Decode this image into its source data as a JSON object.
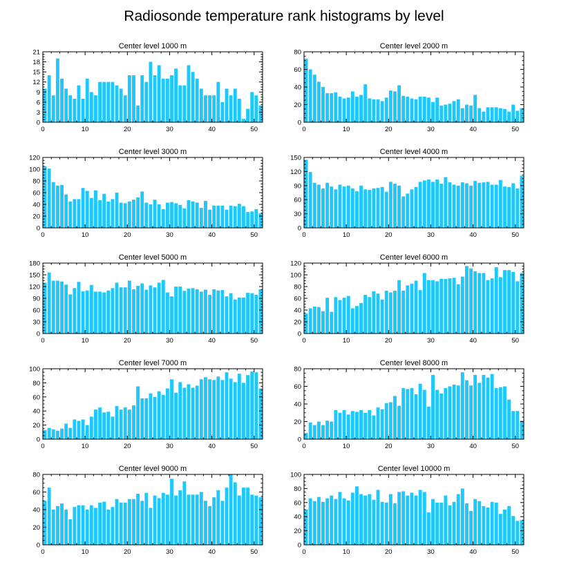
{
  "chart_data": {
    "title": "Radiosonde temperature rank histograms by level",
    "colors": {
      "bar": "#1EC8FA",
      "axis": "#000000",
      "background": "#FFFFFF"
    },
    "panels": [
      {
        "type": "bar",
        "title": "Center level 1000 m",
        "x": [
          0,
          1,
          2,
          3,
          4,
          5,
          6,
          7,
          8,
          9,
          10,
          11,
          12,
          13,
          14,
          15,
          16,
          17,
          18,
          19,
          20,
          21,
          22,
          23,
          24,
          25,
          26,
          27,
          28,
          29,
          30,
          31,
          32,
          33,
          34,
          35,
          36,
          37,
          38,
          39,
          40,
          41,
          42,
          43,
          44,
          45,
          46,
          47,
          48,
          49,
          50,
          51
        ],
        "values": [
          10,
          14,
          8,
          19,
          13,
          10,
          8,
          7,
          11,
          7,
          13,
          9,
          8,
          12,
          12,
          12,
          12,
          11,
          10,
          8,
          14,
          14,
          5,
          14,
          12,
          18,
          14,
          17,
          13,
          13,
          14,
          16,
          11,
          11,
          17,
          15,
          13,
          10,
          8,
          8,
          8,
          12,
          6,
          10,
          8,
          10,
          7,
          1,
          4,
          9,
          8,
          5
        ],
        "xlim": [
          0,
          52
        ],
        "ylim": [
          0,
          21
        ],
        "xticks": [
          0,
          10,
          20,
          30,
          40,
          50
        ],
        "yticks": [
          0,
          3,
          6,
          9,
          12,
          15,
          18,
          21
        ]
      },
      {
        "type": "bar",
        "title": "Center level 2000 m",
        "x": [
          0,
          1,
          2,
          3,
          4,
          5,
          6,
          7,
          8,
          9,
          10,
          11,
          12,
          13,
          14,
          15,
          16,
          17,
          18,
          19,
          20,
          21,
          22,
          23,
          24,
          25,
          26,
          27,
          28,
          29,
          30,
          31,
          32,
          33,
          34,
          35,
          36,
          37,
          38,
          39,
          40,
          41,
          42,
          43,
          44,
          45,
          46,
          47,
          48,
          49,
          50,
          51
        ],
        "values": [
          72,
          60,
          54,
          46,
          40,
          33,
          33,
          34,
          29,
          27,
          28,
          35,
          29,
          31,
          43,
          27,
          26,
          26,
          24,
          28,
          36,
          35,
          42,
          30,
          29,
          27,
          26,
          29,
          29,
          28,
          23,
          28,
          19,
          20,
          21,
          24,
          26,
          16,
          20,
          19,
          31,
          16,
          12,
          17,
          17,
          17,
          16,
          15,
          12,
          20,
          13,
          16
        ],
        "xlim": [
          0,
          52
        ],
        "ylim": [
          0,
          80
        ],
        "xticks": [
          0,
          10,
          20,
          30,
          40,
          50
        ],
        "yticks": [
          0,
          20,
          40,
          60,
          80
        ]
      },
      {
        "type": "bar",
        "title": "Center level 3000 m",
        "x": [
          0,
          1,
          2,
          3,
          4,
          5,
          6,
          7,
          8,
          9,
          10,
          11,
          12,
          13,
          14,
          15,
          16,
          17,
          18,
          19,
          20,
          21,
          22,
          23,
          24,
          25,
          26,
          27,
          28,
          29,
          30,
          31,
          32,
          33,
          34,
          35,
          36,
          37,
          38,
          39,
          40,
          41,
          42,
          43,
          44,
          45,
          46,
          47,
          48,
          49,
          50,
          51
        ],
        "values": [
          105,
          101,
          78,
          72,
          73,
          57,
          45,
          49,
          49,
          68,
          63,
          51,
          64,
          47,
          58,
          45,
          49,
          60,
          43,
          42,
          45,
          48,
          52,
          62,
          43,
          40,
          48,
          40,
          32,
          43,
          44,
          42,
          39,
          33,
          47,
          45,
          43,
          34,
          46,
          31,
          38,
          38,
          38,
          31,
          38,
          37,
          41,
          37,
          27,
          28,
          32,
          25
        ],
        "xlim": [
          0,
          52
        ],
        "ylim": [
          0,
          120
        ],
        "xticks": [
          0,
          10,
          20,
          30,
          40,
          50
        ],
        "yticks": [
          0,
          20,
          40,
          60,
          80,
          100,
          120
        ]
      },
      {
        "type": "bar",
        "title": "Center level 4000 m",
        "x": [
          0,
          1,
          2,
          3,
          4,
          5,
          6,
          7,
          8,
          9,
          10,
          11,
          12,
          13,
          14,
          15,
          16,
          17,
          18,
          19,
          20,
          21,
          22,
          23,
          24,
          25,
          26,
          27,
          28,
          29,
          30,
          31,
          32,
          33,
          34,
          35,
          36,
          37,
          38,
          39,
          40,
          41,
          42,
          43,
          44,
          45,
          46,
          47,
          48,
          49,
          50,
          51
        ],
        "values": [
          145,
          119,
          96,
          92,
          84,
          96,
          88,
          82,
          92,
          88,
          90,
          84,
          78,
          90,
          82,
          81,
          84,
          85,
          87,
          77,
          98,
          94,
          90,
          67,
          73,
          82,
          87,
          98,
          101,
          103,
          98,
          103,
          94,
          108,
          97,
          92,
          90,
          97,
          95,
          90,
          100,
          96,
          97,
          98,
          92,
          92,
          102,
          88,
          87,
          95,
          84,
          111
        ],
        "xlim": [
          0,
          52
        ],
        "ylim": [
          0,
          150
        ],
        "xticks": [
          0,
          10,
          20,
          30,
          40,
          50
        ],
        "yticks": [
          0,
          30,
          60,
          90,
          120,
          150
        ]
      },
      {
        "type": "bar",
        "title": "Center level 5000 m",
        "x": [
          0,
          1,
          2,
          3,
          4,
          5,
          6,
          7,
          8,
          9,
          10,
          11,
          12,
          13,
          14,
          15,
          16,
          17,
          18,
          19,
          20,
          21,
          22,
          23,
          24,
          25,
          26,
          27,
          28,
          29,
          30,
          31,
          32,
          33,
          34,
          35,
          36,
          37,
          38,
          39,
          40,
          41,
          42,
          43,
          44,
          45,
          46,
          47,
          48,
          49,
          50,
          51
        ],
        "values": [
          130,
          156,
          135,
          135,
          133,
          125,
          100,
          116,
          132,
          108,
          110,
          124,
          107,
          107,
          105,
          110,
          116,
          130,
          118,
          118,
          135,
          113,
          122,
          128,
          112,
          123,
          118,
          130,
          137,
          105,
          95,
          120,
          120,
          109,
          115,
          116,
          113,
          107,
          112,
          99,
          113,
          110,
          111,
          95,
          103,
          87,
          92,
          92,
          104,
          103,
          99,
          113
        ],
        "xlim": [
          0,
          52
        ],
        "ylim": [
          0,
          180
        ],
        "xticks": [
          0,
          10,
          20,
          30,
          40,
          50
        ],
        "yticks": [
          0,
          30,
          60,
          90,
          120,
          150,
          180
        ]
      },
      {
        "type": "bar",
        "title": "Center level 6000 m",
        "x": [
          0,
          1,
          2,
          3,
          4,
          5,
          6,
          7,
          8,
          9,
          10,
          11,
          12,
          13,
          14,
          15,
          16,
          17,
          18,
          19,
          20,
          21,
          22,
          23,
          24,
          25,
          26,
          27,
          28,
          29,
          30,
          31,
          32,
          33,
          34,
          35,
          36,
          37,
          38,
          39,
          40,
          41,
          42,
          43,
          44,
          45,
          46,
          47,
          48,
          49,
          50,
          51
        ],
        "values": [
          34,
          43,
          46,
          45,
          38,
          61,
          37,
          62,
          57,
          61,
          64,
          43,
          47,
          52,
          66,
          62,
          72,
          68,
          58,
          73,
          70,
          73,
          91,
          73,
          82,
          85,
          90,
          74,
          103,
          91,
          91,
          89,
          93,
          93,
          94,
          95,
          84,
          97,
          115,
          111,
          106,
          103,
          103,
          91,
          94,
          113,
          96,
          108,
          108,
          105,
          89,
          103
        ],
        "xlim": [
          0,
          52
        ],
        "ylim": [
          0,
          120
        ],
        "xticks": [
          0,
          10,
          20,
          30,
          40,
          50
        ],
        "yticks": [
          0,
          20,
          40,
          60,
          80,
          100,
          120
        ]
      },
      {
        "type": "bar",
        "title": "Center level 7000 m",
        "x": [
          0,
          1,
          2,
          3,
          4,
          5,
          6,
          7,
          8,
          9,
          10,
          11,
          12,
          13,
          14,
          15,
          16,
          17,
          18,
          19,
          20,
          21,
          22,
          23,
          24,
          25,
          26,
          27,
          28,
          29,
          30,
          31,
          32,
          33,
          34,
          35,
          36,
          37,
          38,
          39,
          40,
          41,
          42,
          43,
          44,
          45,
          46,
          47,
          48,
          49,
          50,
          51
        ],
        "values": [
          13,
          16,
          14,
          12,
          15,
          22,
          16,
          28,
          26,
          28,
          20,
          32,
          42,
          45,
          38,
          39,
          32,
          47,
          42,
          45,
          42,
          48,
          75,
          58,
          58,
          65,
          60,
          68,
          63,
          72,
          85,
          66,
          81,
          73,
          78,
          73,
          76,
          85,
          88,
          85,
          84,
          89,
          84,
          95,
          86,
          81,
          93,
          80,
          91,
          96,
          95,
          72
        ],
        "xlim": [
          0,
          52
        ],
        "ylim": [
          0,
          100
        ],
        "xticks": [
          0,
          10,
          20,
          30,
          40,
          50
        ],
        "yticks": [
          0,
          20,
          40,
          60,
          80,
          100
        ]
      },
      {
        "type": "bar",
        "title": "Center level 8000 m",
        "x": [
          0,
          1,
          2,
          3,
          4,
          5,
          6,
          7,
          8,
          9,
          10,
          11,
          12,
          13,
          14,
          15,
          16,
          17,
          18,
          19,
          20,
          21,
          22,
          23,
          24,
          25,
          26,
          27,
          28,
          29,
          30,
          31,
          32,
          33,
          34,
          35,
          36,
          37,
          38,
          39,
          40,
          41,
          42,
          43,
          44,
          45,
          46,
          47,
          48,
          49,
          50,
          51
        ],
        "values": [
          7,
          19,
          16,
          20,
          16,
          21,
          20,
          33,
          30,
          33,
          28,
          32,
          31,
          33,
          30,
          33,
          27,
          36,
          34,
          41,
          42,
          49,
          38,
          58,
          57,
          58,
          51,
          63,
          56,
          37,
          73,
          56,
          52,
          58,
          60,
          62,
          61,
          76,
          67,
          61,
          73,
          64,
          73,
          70,
          74,
          58,
          59,
          60,
          45,
          32,
          32,
          21
        ],
        "xlim": [
          0,
          52
        ],
        "ylim": [
          0,
          80
        ],
        "xticks": [
          0,
          10,
          20,
          30,
          40,
          50
        ],
        "yticks": [
          0,
          20,
          40,
          60,
          80
        ]
      },
      {
        "type": "bar",
        "title": "Center level 9000 m",
        "x": [
          0,
          1,
          2,
          3,
          4,
          5,
          6,
          7,
          8,
          9,
          10,
          11,
          12,
          13,
          14,
          15,
          16,
          17,
          18,
          19,
          20,
          21,
          22,
          23,
          24,
          25,
          26,
          27,
          28,
          29,
          30,
          31,
          32,
          33,
          34,
          35,
          36,
          37,
          38,
          39,
          40,
          41,
          42,
          43,
          44,
          45,
          46,
          47,
          48,
          49,
          50,
          51
        ],
        "values": [
          50,
          65,
          40,
          44,
          47,
          40,
          29,
          43,
          45,
          45,
          40,
          45,
          42,
          48,
          49,
          40,
          43,
          52,
          48,
          48,
          52,
          52,
          58,
          50,
          59,
          42,
          56,
          53,
          59,
          57,
          75,
          56,
          62,
          72,
          57,
          57,
          57,
          60,
          50,
          44,
          54,
          62,
          50,
          65,
          80,
          71,
          56,
          65,
          65,
          57,
          56,
          54
        ],
        "xlim": [
          0,
          52
        ],
        "ylim": [
          0,
          80
        ],
        "xticks": [
          0,
          10,
          20,
          30,
          40,
          50
        ],
        "yticks": [
          0,
          20,
          40,
          60,
          80
        ]
      },
      {
        "type": "bar",
        "title": "Center level 10000 m",
        "x": [
          0,
          1,
          2,
          3,
          4,
          5,
          6,
          7,
          8,
          9,
          10,
          11,
          12,
          13,
          14,
          15,
          16,
          17,
          18,
          19,
          20,
          21,
          22,
          23,
          24,
          25,
          26,
          27,
          28,
          29,
          30,
          31,
          32,
          33,
          34,
          35,
          36,
          37,
          38,
          39,
          40,
          41,
          42,
          43,
          44,
          45,
          46,
          47,
          48,
          49,
          50,
          51
        ],
        "values": [
          50,
          66,
          62,
          68,
          61,
          66,
          70,
          65,
          75,
          66,
          63,
          74,
          83,
          72,
          70,
          72,
          64,
          78,
          61,
          60,
          72,
          59,
          75,
          76,
          70,
          74,
          70,
          78,
          75,
          46,
          65,
          60,
          60,
          70,
          56,
          61,
          72,
          80,
          59,
          48,
          65,
          62,
          55,
          53,
          61,
          60,
          44,
          50,
          55,
          41,
          34,
          35
        ],
        "xlim": [
          0,
          52
        ],
        "ylim": [
          0,
          100
        ],
        "xticks": [
          0,
          10,
          20,
          30,
          40,
          50
        ],
        "yticks": [
          0,
          20,
          40,
          60,
          80,
          100
        ]
      }
    ]
  }
}
